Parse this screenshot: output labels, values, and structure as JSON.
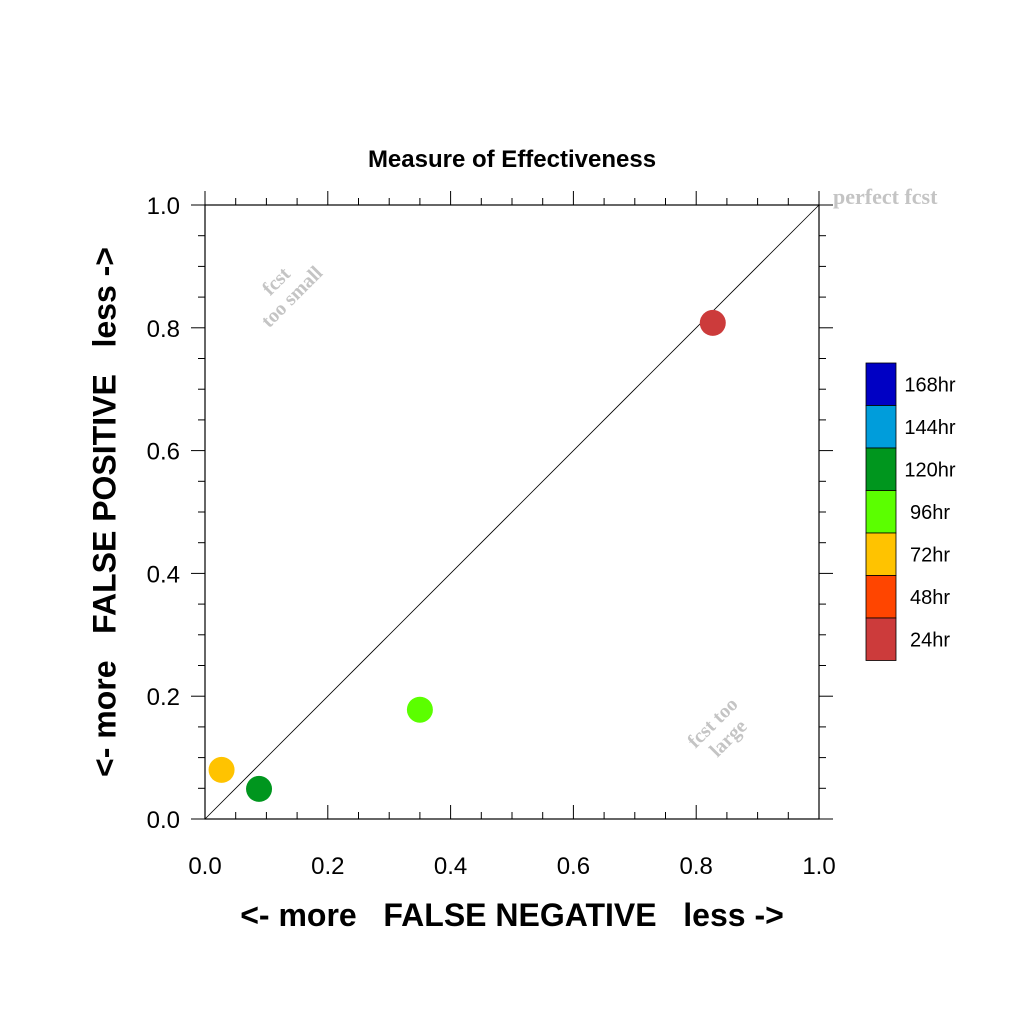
{
  "chart_data": {
    "type": "scatter",
    "title": "Measure of Effectiveness",
    "xlabel": "<- more   FALSE NEGATIVE   less ->",
    "ylabel": "<- more   FALSE POSITIVE   less ->",
    "xlim": [
      0.0,
      1.0
    ],
    "ylim": [
      0.0,
      1.0
    ],
    "xticks": [
      "0.0",
      "0.2",
      "0.4",
      "0.6",
      "0.8",
      "1.0"
    ],
    "yticks": [
      "0.0",
      "0.2",
      "0.4",
      "0.6",
      "0.8",
      "1.0"
    ],
    "grid": false,
    "reference_line": "diagonal",
    "annotations": {
      "perfect": "perfect fcst",
      "too_small": [
        "fcst",
        "too small"
      ],
      "too_large": [
        "fcst too",
        "large"
      ]
    },
    "legend": {
      "placement": "right",
      "entries": [
        {
          "label": "168hr",
          "color": "#0000c4"
        },
        {
          "label": "144hr",
          "color": "#009ddb"
        },
        {
          "label": "120hr",
          "color": "#00961e"
        },
        {
          "label": "96hr",
          "color": "#5bff00"
        },
        {
          "label": "72hr",
          "color": "#ffc300"
        },
        {
          "label": "48hr",
          "color": "#ff4500"
        },
        {
          "label": "24hr",
          "color": "#cc3b3b"
        }
      ]
    },
    "points": [
      {
        "x": 0.827,
        "y": 0.808,
        "color": "#cc3b3b"
      },
      {
        "x": 0.35,
        "y": 0.178,
        "color": "#5bff00"
      },
      {
        "x": 0.027,
        "y": 0.08,
        "color": "#ffc300"
      },
      {
        "x": 0.088,
        "y": 0.049,
        "color": "#00961e"
      }
    ]
  }
}
